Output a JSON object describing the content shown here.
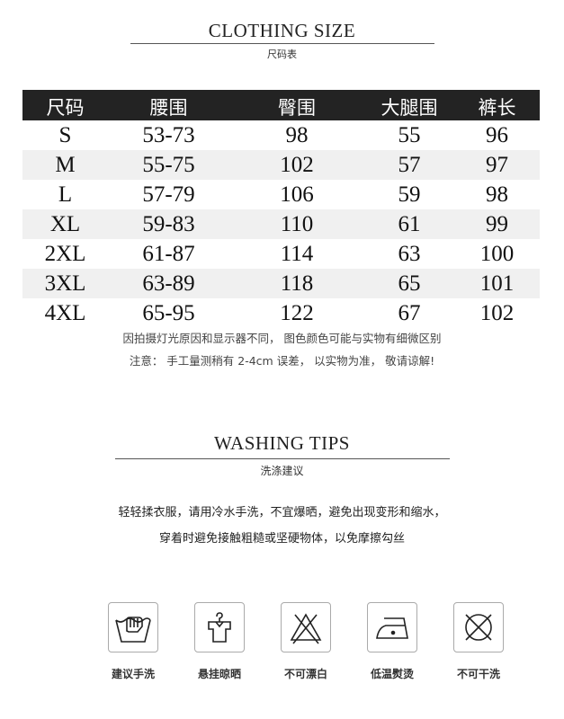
{
  "size_section": {
    "title": "CLOTHING SIZE",
    "subtitle": "尺码表"
  },
  "table": {
    "headers": [
      "尺码",
      "腰围",
      "臀围",
      "大腿围",
      "裤长"
    ],
    "rows": [
      [
        "S",
        "53-73",
        "98",
        "55",
        "96"
      ],
      [
        "M",
        "55-75",
        "102",
        "57",
        "97"
      ],
      [
        "L",
        "57-79",
        "106",
        "59",
        "98"
      ],
      [
        "XL",
        "59-83",
        "110",
        "61",
        "99"
      ],
      [
        "2XL",
        "61-87",
        "114",
        "63",
        "100"
      ],
      [
        "3XL",
        "63-89",
        "118",
        "65",
        "101"
      ],
      [
        "4XL",
        "65-95",
        "122",
        "67",
        "102"
      ]
    ]
  },
  "notes": [
    "因拍摄灯光原因和显示器不同， 图色颜色可能与实物有细微区别",
    "注意： 手工量测稍有 2-4cm 误差， 以实物为准， 敬请谅解!"
  ],
  "washing_section": {
    "title": "WASHING TIPS",
    "subtitle": "洗涤建议"
  },
  "tips": [
    "轻轻揉衣服，请用冷水手洗，不宜爆晒，避免出现变形和缩水，",
    "穿着时避免接触粗糙或坚硬物体，以免摩擦勾丝"
  ],
  "care_icons": [
    {
      "icon": "hand-wash-icon",
      "label": "建议手洗"
    },
    {
      "icon": "hang-dry-icon",
      "label": "悬挂晾晒"
    },
    {
      "icon": "no-bleach-icon",
      "label": "不可漂白"
    },
    {
      "icon": "low-iron-icon",
      "label": "低温熨烫"
    },
    {
      "icon": "no-dry-clean-icon",
      "label": "不可干洗"
    }
  ]
}
